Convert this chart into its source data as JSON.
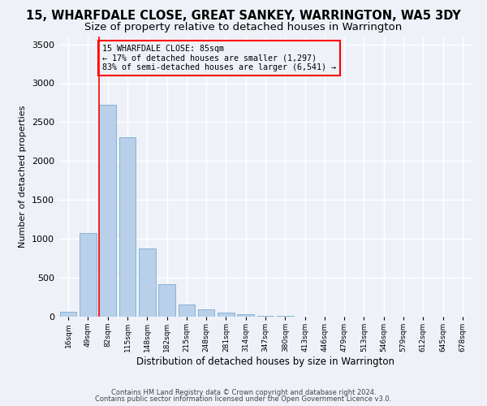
{
  "title": "15, WHARFDALE CLOSE, GREAT SANKEY, WARRINGTON, WA5 3DY",
  "subtitle": "Size of property relative to detached houses in Warrington",
  "xlabel": "Distribution of detached houses by size in Warrington",
  "ylabel": "Number of detached properties",
  "footer1": "Contains HM Land Registry data © Crown copyright and database right 2024.",
  "footer2": "Contains public sector information licensed under the Open Government Licence v3.0.",
  "annotation_line1": "15 WHARFDALE CLOSE: 85sqm",
  "annotation_line2": "← 17% of detached houses are smaller (1,297)",
  "annotation_line3": "83% of semi-detached houses are larger (6,541) →",
  "bar_color": "#b8d0ea",
  "bar_edge_color": "#6a9fc8",
  "redline_bin": 2,
  "categories": [
    "16sqm",
    "49sqm",
    "82sqm",
    "115sqm",
    "148sqm",
    "182sqm",
    "215sqm",
    "248sqm",
    "281sqm",
    "314sqm",
    "347sqm",
    "380sqm",
    "413sqm",
    "446sqm",
    "479sqm",
    "513sqm",
    "546sqm",
    "579sqm",
    "612sqm",
    "645sqm",
    "678sqm"
  ],
  "values": [
    60,
    1080,
    2720,
    2310,
    880,
    420,
    160,
    90,
    55,
    35,
    15,
    10,
    5,
    3,
    2,
    1,
    1,
    0,
    0,
    0,
    0
  ],
  "ylim": [
    0,
    3600
  ],
  "yticks": [
    0,
    500,
    1000,
    1500,
    2000,
    2500,
    3000,
    3500
  ],
  "bg_color": "#eef2f8",
  "grid_color": "#ffffff",
  "title_fontsize": 10.5,
  "subtitle_fontsize": 9.5,
  "bar_width": 0.85
}
